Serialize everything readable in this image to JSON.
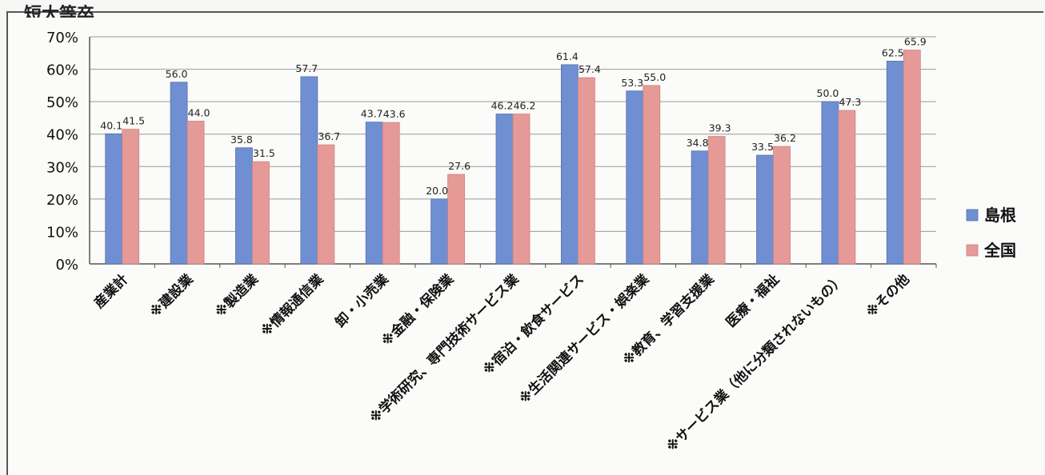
{
  "chart_data": {
    "type": "bar",
    "title": "短大等卒",
    "categories": [
      "産業計",
      "※建設業",
      "※製造業",
      "※情報通信業",
      "卸・小売業",
      "※金融・保険業",
      "※学術研究、専門技術サービス業",
      "※宿泊・飲食サービス",
      "※生活関連サービス・娯楽業",
      "※教育、学習支援業",
      "医療・福祉",
      "※サービス業（他に分類されないもの）",
      "※その他"
    ],
    "series": [
      {
        "name": "島根",
        "color": "#6f8fd2",
        "values": [
          40.1,
          56.0,
          35.8,
          57.7,
          43.7,
          20.0,
          46.2,
          61.4,
          53.3,
          34.8,
          33.5,
          50.0,
          62.5
        ]
      },
      {
        "name": "全国",
        "color": "#e69a98",
        "values": [
          41.5,
          44.0,
          31.5,
          36.7,
          43.6,
          27.6,
          46.2,
          57.4,
          55.0,
          39.3,
          36.2,
          47.3,
          65.9
        ]
      }
    ],
    "ylim": [
      0,
      70
    ],
    "yticks": [
      "0%",
      "10%",
      "20%",
      "30%",
      "40%",
      "50%",
      "60%",
      "70%"
    ],
    "grid": true,
    "legend": "right"
  }
}
